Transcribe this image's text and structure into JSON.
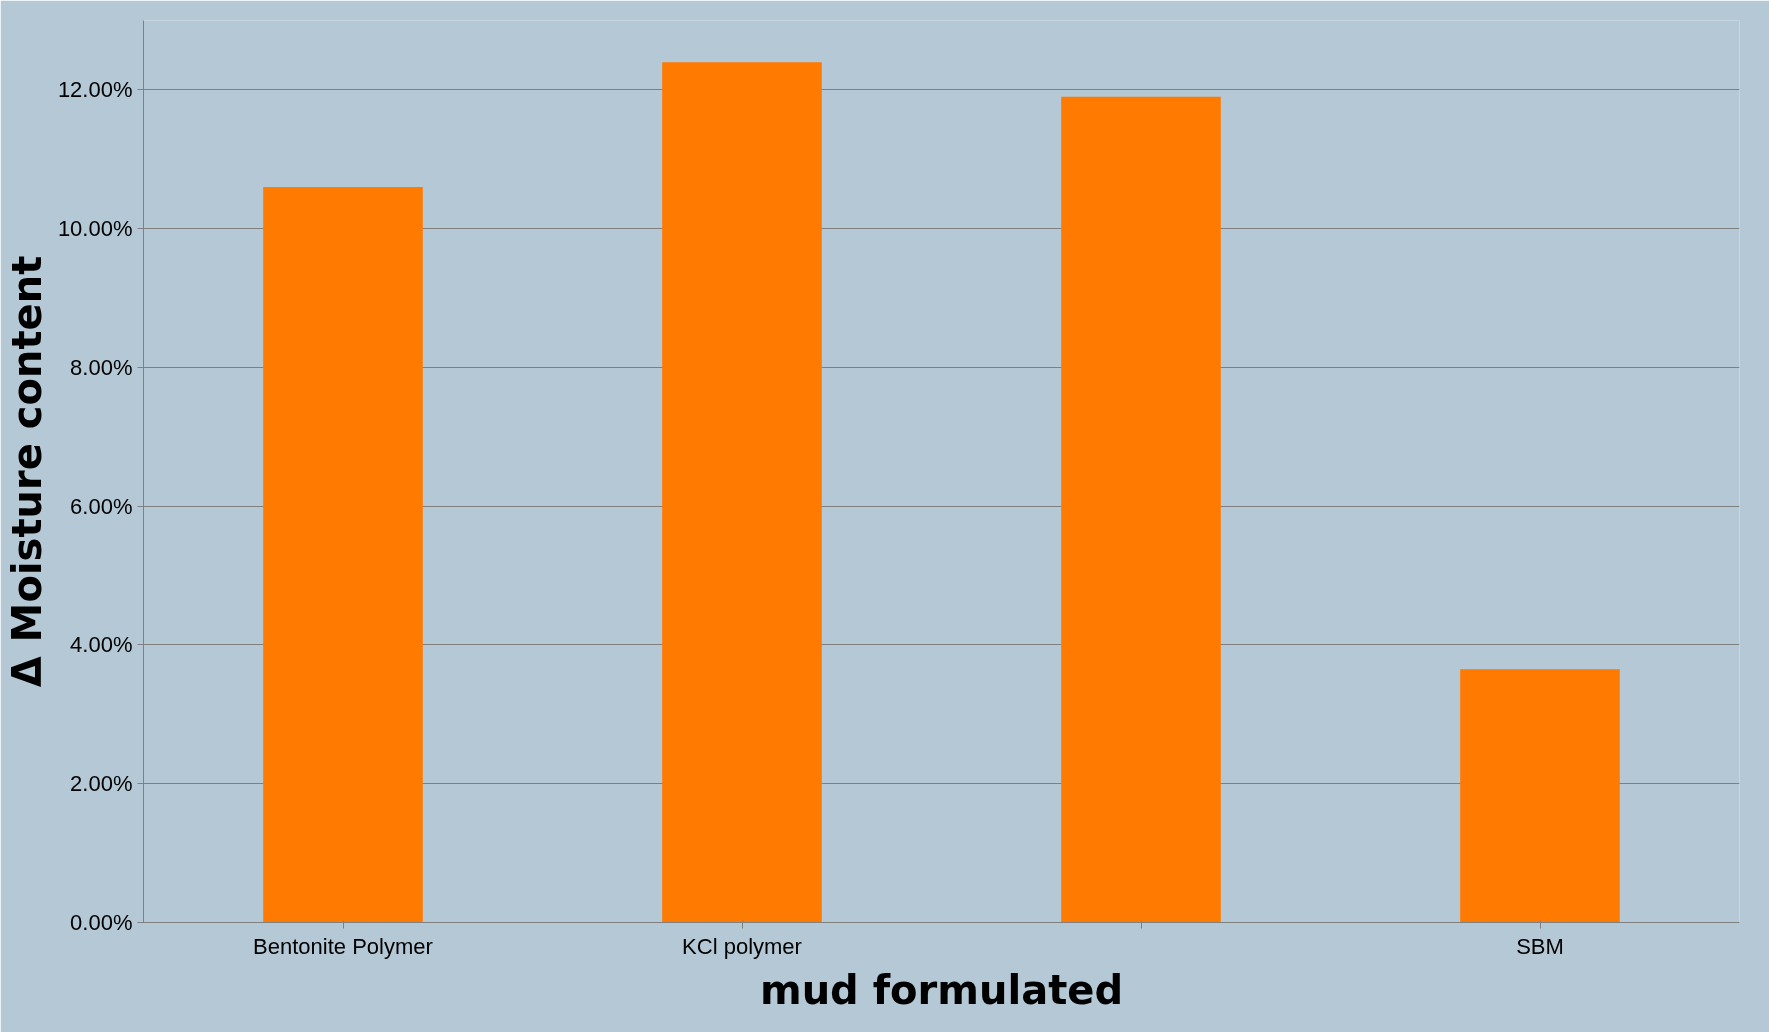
{
  "chart_data": {
    "type": "bar",
    "xlabel": "mud formulated",
    "ylabel": "Δ Moisture content",
    "categories": [
      "Bentonite Polymer",
      "KCl polymer",
      null,
      "SBM"
    ],
    "values": [
      10.6,
      12.4,
      11.9,
      3.65
    ],
    "color": "#ff7a00",
    "ylim": [
      0,
      13
    ],
    "yticks": [
      {
        "value": 0,
        "label": "0.00%"
      },
      {
        "value": 2,
        "label": "2.00%"
      },
      {
        "value": 4,
        "label": "4.00%"
      },
      {
        "value": 6,
        "label": "6.00%"
      },
      {
        "value": 8,
        "label": "8.00%"
      },
      {
        "value": 10,
        "label": "10.00%"
      },
      {
        "value": 12,
        "label": "12.00%"
      }
    ],
    "grid": "y"
  }
}
